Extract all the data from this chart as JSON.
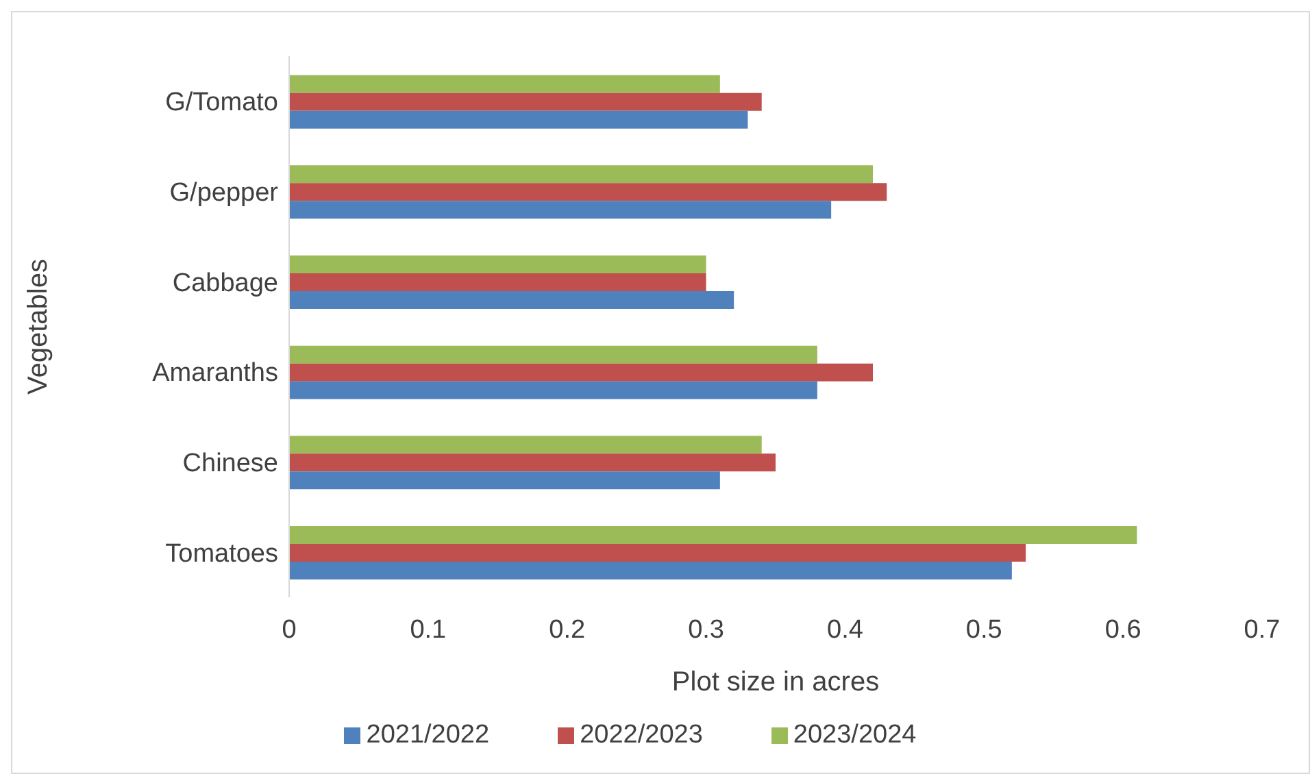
{
  "chart_data": {
    "type": "bar",
    "orientation": "horizontal",
    "xlabel": "Plot size in acres",
    "ylabel": "Vegetables",
    "categories": [
      "G/Tomato",
      "G/pepper",
      "Cabbage",
      "Amaranths",
      "Chinese",
      "Tomatoes"
    ],
    "series": [
      {
        "name": "2023/2024",
        "color": "#9bbb59",
        "values": [
          0.31,
          0.42,
          0.3,
          0.38,
          0.34,
          0.61
        ]
      },
      {
        "name": "2022/2023",
        "color": "#c0504d",
        "values": [
          0.34,
          0.43,
          0.3,
          0.42,
          0.35,
          0.53
        ]
      },
      {
        "name": "2021/2022",
        "color": "#4f81bd",
        "values": [
          0.33,
          0.39,
          0.32,
          0.38,
          0.31,
          0.52
        ]
      }
    ],
    "xlim": [
      0,
      0.7
    ],
    "xticks": [
      0,
      0.1,
      0.2,
      0.3,
      0.4,
      0.5,
      0.6,
      0.7
    ],
    "grid": false,
    "legend": "bottom"
  }
}
